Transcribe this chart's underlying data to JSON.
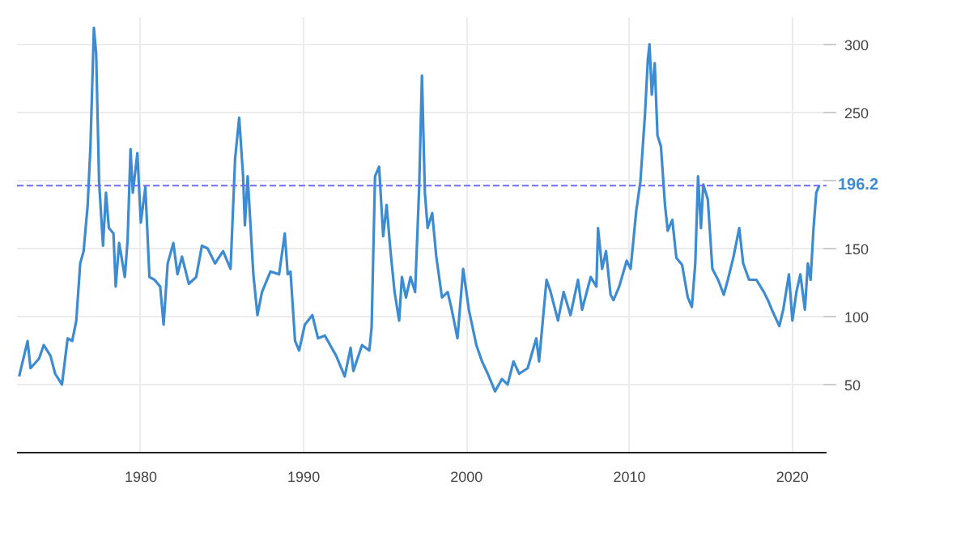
{
  "chart_data": {
    "type": "line",
    "x": [
      1972.53,
      1973.05,
      1973.23,
      1973.75,
      1974.04,
      1974.46,
      1974.74,
      1975.16,
      1975.51,
      1975.79,
      1976.04,
      1976.28,
      1976.49,
      1976.74,
      1976.91,
      1977.12,
      1977.26,
      1977.44,
      1977.68,
      1977.86,
      1978.04,
      1978.32,
      1978.46,
      1978.67,
      1979.02,
      1979.19,
      1979.37,
      1979.51,
      1979.79,
      1980.0,
      1980.28,
      1980.53,
      1980.84,
      1981.19,
      1981.4,
      1981.65,
      1982.0,
      1982.25,
      1982.53,
      1982.95,
      1983.4,
      1983.75,
      1984.1,
      1984.56,
      1985.05,
      1985.51,
      1985.79,
      1986.04,
      1986.28,
      1986.39,
      1986.56,
      1986.91,
      1987.16,
      1987.44,
      1987.96,
      1988.49,
      1988.84,
      1989.02,
      1989.19,
      1989.47,
      1989.72,
      1990.07,
      1990.53,
      1990.88,
      1991.3,
      1992.0,
      1992.52,
      1992.88,
      1993.05,
      1993.58,
      1994.03,
      1994.17,
      1994.38,
      1994.63,
      1994.88,
      1995.09,
      1995.33,
      1995.58,
      1995.86,
      1996.03,
      1996.28,
      1996.56,
      1996.84,
      1997.09,
      1997.26,
      1997.44,
      1997.61,
      1997.89,
      1998.14,
      1998.49,
      1998.84,
      1999.09,
      1999.44,
      1999.79,
      2000.14,
      2000.6,
      2000.95,
      2001.3,
      2001.75,
      2002.17,
      2002.52,
      2002.88,
      2003.23,
      2003.75,
      2004.28,
      2004.45,
      2004.91,
      2005.16,
      2005.61,
      2005.96,
      2006.38,
      2006.84,
      2007.09,
      2007.62,
      2007.97,
      2008.07,
      2008.32,
      2008.56,
      2008.84,
      2009.02,
      2009.37,
      2009.83,
      2010.07,
      2010.42,
      2010.67,
      2010.95,
      2011.13,
      2011.23,
      2011.37,
      2011.55,
      2011.72,
      2011.93,
      2012.18,
      2012.35,
      2012.63,
      2012.88,
      2013.23,
      2013.58,
      2013.83,
      2014.04,
      2014.21,
      2014.39,
      2014.53,
      2014.81,
      2015.09,
      2015.44,
      2015.79,
      2016.04,
      2016.39,
      2016.74,
      2016.98,
      2017.34,
      2017.79,
      2018.25,
      2018.5,
      2018.74,
      2019.2,
      2019.44,
      2019.79,
      2020.0,
      2020.25,
      2020.49,
      2020.77,
      2020.95,
      2021.12,
      2021.3,
      2021.47,
      2021.65
    ],
    "series": [
      {
        "color": "#3d8bd1",
        "values": [
          56,
          82,
          62,
          69,
          79,
          71,
          58,
          50,
          84,
          82,
          97,
          139,
          148,
          182,
          225,
          312,
          293,
          199,
          152,
          191,
          165,
          161,
          122,
          154,
          129,
          156,
          223,
          191,
          220,
          169,
          195,
          129,
          127,
          122,
          94,
          139,
          154,
          131,
          144,
          124,
          129,
          152,
          150,
          139,
          148,
          135,
          216,
          246,
          203,
          167,
          203,
          131,
          101,
          118,
          133,
          131,
          161,
          131,
          133,
          82,
          75,
          94,
          101,
          84,
          86,
          71,
          56,
          77,
          60,
          79,
          75,
          92,
          203,
          210,
          159,
          182,
          148,
          118,
          97,
          129,
          114,
          129,
          118,
          195,
          277,
          191,
          165,
          176,
          144,
          114,
          118,
          105,
          84,
          135,
          105,
          79,
          67,
          58,
          45,
          54,
          50,
          67,
          58,
          62,
          84,
          67,
          127,
          118,
          97,
          118,
          101,
          127,
          105,
          129,
          122,
          165,
          135,
          148,
          116,
          112,
          122,
          141,
          135,
          178,
          199,
          248,
          289,
          300,
          263,
          286,
          233,
          225,
          182,
          163,
          171,
          143,
          138,
          114,
          107,
          139,
          203,
          165,
          197,
          186,
          135,
          127,
          116,
          127,
          144,
          165,
          139,
          127,
          127,
          118,
          112,
          105,
          93,
          105,
          131,
          97,
          118,
          131,
          105,
          139,
          127,
          165,
          191,
          196.2
        ]
      }
    ],
    "xlim": [
      1972.4,
      2022.1
    ],
    "xticks": [
      1980,
      1990,
      2000,
      2010,
      2020
    ],
    "ylim": [
      0,
      320
    ],
    "yticks": [
      50,
      100,
      150,
      {
        "value": 200,
        "label": null
      },
      250,
      300
    ],
    "grid": true,
    "ref_lines": [
      {
        "axis": "y",
        "value": 196.2,
        "label": "196.2",
        "color": "#6d6dff",
        "line_style": "dashed"
      }
    ]
  }
}
